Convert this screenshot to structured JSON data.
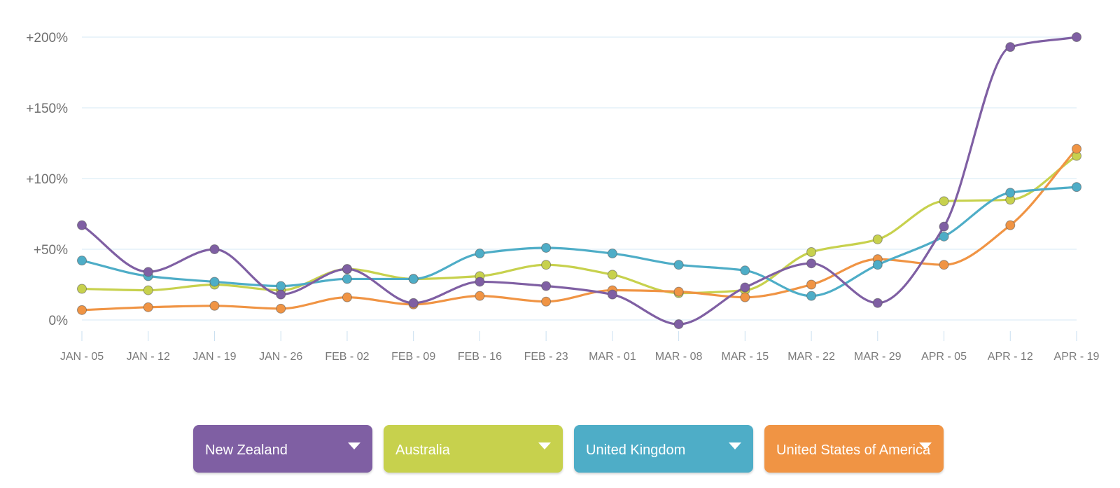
{
  "chart_data": {
    "type": "line",
    "title": "",
    "xlabel": "",
    "ylabel": "",
    "ylim": [
      -15,
      205
    ],
    "grid": true,
    "y_ticks": [
      {
        "value": 200,
        "label": "+200%"
      },
      {
        "value": 150,
        "label": "+150%"
      },
      {
        "value": 100,
        "label": "+100%"
      },
      {
        "value": 50,
        "label": "+50%"
      },
      {
        "value": 0,
        "label": "0%"
      }
    ],
    "categories": [
      "JAN - 05",
      "JAN - 12",
      "JAN - 19",
      "JAN - 26",
      "FEB - 02",
      "FEB - 09",
      "FEB - 16",
      "FEB - 23",
      "MAR - 01",
      "MAR - 08",
      "MAR - 15",
      "MAR - 22",
      "MAR - 29",
      "APR - 05",
      "APR - 12",
      "APR - 19"
    ],
    "series": [
      {
        "name": "Australia",
        "color": "#c7d14d",
        "values": [
          22,
          21,
          25,
          21,
          36,
          29,
          31,
          39,
          32,
          19,
          21,
          48,
          57,
          84,
          85,
          116
        ]
      },
      {
        "name": "United States of America",
        "color": "#f09444",
        "values": [
          7,
          9,
          10,
          8,
          16,
          11,
          17,
          13,
          21,
          20,
          16,
          25,
          43,
          39,
          67,
          121
        ]
      },
      {
        "name": "United Kingdom",
        "color": "#4eadc7",
        "values": [
          42,
          31,
          27,
          24,
          29,
          29,
          47,
          51,
          47,
          39,
          35,
          17,
          39,
          59,
          90,
          94
        ]
      },
      {
        "name": "New Zealand",
        "color": "#7f5fa3",
        "values": [
          67,
          34,
          50,
          18,
          36,
          12,
          27,
          24,
          18,
          -3,
          23,
          40,
          12,
          66,
          193,
          200
        ]
      }
    ]
  },
  "selectors": [
    {
      "label": "New Zealand",
      "color": "#7f5fa3"
    },
    {
      "label": "Australia",
      "color": "#c7d14d"
    },
    {
      "label": "United Kingdom",
      "color": "#4eadc7"
    },
    {
      "label": "United States of America",
      "color": "#f09444"
    }
  ]
}
